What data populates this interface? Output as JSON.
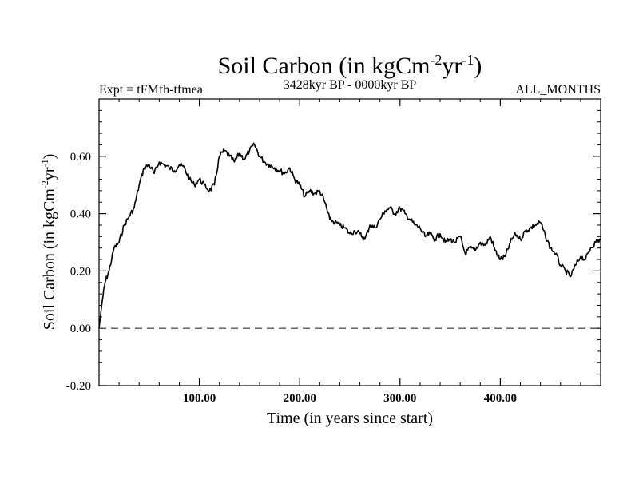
{
  "chart_data": {
    "type": "line",
    "title": "Soil Carbon (in kgCm",
    "title_sup1": "-2",
    "title_mid": "yr",
    "title_sup2": "-1",
    "title_end": ")",
    "subtitle_left": "Expt = tFMfh-tfmea",
    "subtitle_center": "3428kyr BP - 0000kyr BP",
    "subtitle_right": "ALL_MONTHS",
    "xlabel": "Time (in years since start)",
    "ylabel": "Soil Carbon (in kgCm",
    "ylabel_sup1": "-2",
    "ylabel_mid": "yr",
    "ylabel_sup2": "-1",
    "ylabel_end": ")",
    "xlim": [
      0,
      500
    ],
    "ylim": [
      -0.2,
      0.8
    ],
    "xticks": [
      100,
      200,
      300,
      400
    ],
    "xtick_labels": [
      "100.00",
      "200.00",
      "300.00",
      "400.00"
    ],
    "yticks": [
      -0.2,
      0.0,
      0.2,
      0.4,
      0.6
    ],
    "ytick_labels": [
      "-0.20",
      "0.00",
      "0.20",
      "0.40",
      "0.60"
    ],
    "reference_line": {
      "y": 0.0,
      "style": "dashed",
      "color": "#555555"
    },
    "series": [
      {
        "name": "Soil Carbon",
        "color": "#000000",
        "x": [
          0,
          3,
          6,
          10,
          15,
          20,
          25,
          30,
          35,
          40,
          45,
          50,
          55,
          60,
          65,
          70,
          75,
          80,
          85,
          90,
          95,
          100,
          105,
          110,
          115,
          120,
          125,
          130,
          135,
          140,
          145,
          150,
          155,
          160,
          165,
          170,
          175,
          180,
          185,
          190,
          195,
          200,
          205,
          210,
          215,
          220,
          225,
          230,
          235,
          240,
          245,
          250,
          255,
          260,
          265,
          270,
          275,
          280,
          285,
          290,
          295,
          300,
          305,
          310,
          315,
          320,
          325,
          330,
          335,
          340,
          345,
          350,
          355,
          360,
          365,
          370,
          375,
          380,
          385,
          390,
          395,
          400,
          405,
          410,
          415,
          420,
          425,
          430,
          435,
          440,
          445,
          450,
          455,
          460,
          465,
          470,
          475,
          480,
          485,
          490,
          495,
          500
        ],
        "values": [
          0.0,
          0.09,
          0.16,
          0.2,
          0.28,
          0.3,
          0.36,
          0.39,
          0.42,
          0.5,
          0.56,
          0.57,
          0.54,
          0.58,
          0.57,
          0.56,
          0.55,
          0.57,
          0.56,
          0.52,
          0.5,
          0.52,
          0.5,
          0.48,
          0.5,
          0.6,
          0.62,
          0.6,
          0.58,
          0.61,
          0.59,
          0.62,
          0.64,
          0.6,
          0.58,
          0.57,
          0.56,
          0.55,
          0.54,
          0.56,
          0.52,
          0.5,
          0.46,
          0.48,
          0.47,
          0.48,
          0.44,
          0.38,
          0.37,
          0.36,
          0.35,
          0.33,
          0.34,
          0.33,
          0.31,
          0.36,
          0.35,
          0.38,
          0.41,
          0.42,
          0.4,
          0.42,
          0.4,
          0.38,
          0.36,
          0.35,
          0.32,
          0.33,
          0.31,
          0.33,
          0.3,
          0.31,
          0.3,
          0.32,
          0.26,
          0.28,
          0.27,
          0.3,
          0.29,
          0.32,
          0.27,
          0.24,
          0.25,
          0.3,
          0.33,
          0.31,
          0.34,
          0.35,
          0.36,
          0.37,
          0.32,
          0.28,
          0.26,
          0.22,
          0.2,
          0.18,
          0.22,
          0.25,
          0.24,
          0.28,
          0.3,
          0.31
        ]
      }
    ]
  }
}
